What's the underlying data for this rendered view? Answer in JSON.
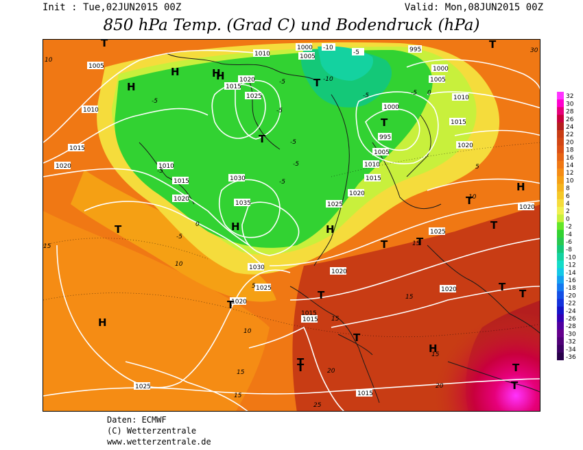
{
  "header": {
    "init": "Init : Tue,02JUN2015 00Z",
    "valid": "Valid: Mon,08JUN2015 00Z",
    "title": "850 hPa Temp. (Grad C) und Bodendruck (hPa)"
  },
  "footer": {
    "line1": "Daten: ECMWF",
    "line2": "(C) Wetterzentrale",
    "line3": "www.wetterzentrale.de"
  },
  "colors": {
    "map_border": "#000000",
    "isobar": "#ffffff",
    "coast": "#1a1a1a"
  },
  "colorbar": {
    "labels": [
      "32",
      "30",
      "28",
      "26",
      "24",
      "22",
      "20",
      "18",
      "16",
      "14",
      "12",
      "10",
      "8",
      "6",
      "4",
      "2",
      "0",
      "-2",
      "-4",
      "-6",
      "-8",
      "-10",
      "-12",
      "-14",
      "-16",
      "-18",
      "-20",
      "-22",
      "-24",
      "-26",
      "-28",
      "-30",
      "-32",
      "-34",
      "-36"
    ],
    "colors": [
      "#ff33ff",
      "#ff00cc",
      "#e6007a",
      "#c8003c",
      "#b41e1e",
      "#c83c14",
      "#d24614",
      "#dc5014",
      "#e66414",
      "#f07814",
      "#f58c14",
      "#f5a014",
      "#f5b41e",
      "#f5c828",
      "#f5dc3c",
      "#f0f050",
      "#c8f03c",
      "#64e628",
      "#32d232",
      "#28c850",
      "#14c878",
      "#14d2a0",
      "#14dcc8",
      "#14c8e6",
      "#14a0f0",
      "#1478f0",
      "#1450e6",
      "#1432dc",
      "#1414c8",
      "#3200b4",
      "#5000a0",
      "#64008c",
      "#500078",
      "#3c0064",
      "#28004a"
    ]
  },
  "map": {
    "pressure_labels": [
      "1000",
      "1005",
      "-10",
      "-5",
      "995",
      "1010",
      "1015",
      "1020",
      "1025",
      "1030",
      "1035",
      "1030",
      "1000",
      "995",
      "1005",
      "1010",
      "1015",
      "1020",
      "1025",
      "1020",
      "1020",
      "1015",
      "1025",
      "1020",
      "1020",
      "1015",
      "1025",
      "1015",
      "1020",
      "1015",
      "1010",
      "1005",
      "1000",
      "1005",
      "1010",
      "1015",
      "1020",
      "1025",
      "1010",
      "1015",
      "1020"
    ],
    "temp_labels": [
      "10",
      "-5",
      "-5",
      "-5",
      "-5",
      "-10",
      "-5",
      "-5",
      "-5",
      "-5",
      "0",
      "5",
      "-5",
      "0",
      "10",
      "15",
      "10",
      "15",
      "15",
      "15",
      "20",
      "25",
      "20",
      "15",
      "15",
      "10",
      "15",
      "30",
      "5",
      "-5"
    ],
    "centres": [
      "H",
      "H",
      "H",
      "H",
      "H",
      "T",
      "T",
      "T",
      "T",
      "T",
      "T",
      "H",
      "H",
      "T",
      "T",
      "T",
      "T",
      "T",
      "T",
      "T",
      "T",
      "T",
      "T",
      "T",
      "H",
      "H",
      "T",
      "T"
    ]
  }
}
